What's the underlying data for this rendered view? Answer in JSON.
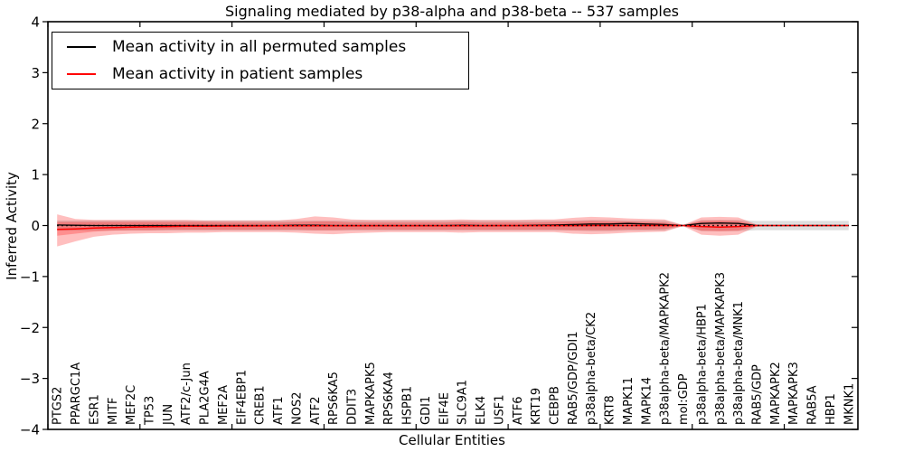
{
  "chart_data": {
    "type": "area",
    "title": "Signaling mediated by p38-alpha and p38-beta -- 537 samples",
    "xlabel": "Cellular Entities",
    "ylabel": "Inferred Activity",
    "ylim": [
      -4,
      4
    ],
    "yticks": [
      4,
      3,
      2,
      1,
      0,
      -1,
      -2,
      -3,
      -4
    ],
    "x_major_tick_step": 5,
    "x_range": [
      0,
      44
    ],
    "grid": false,
    "legend": {
      "position": "upper left",
      "entries": [
        {
          "label": "Mean activity in all permuted samples",
          "color": "#000000"
        },
        {
          "label": "Mean activity in patient samples",
          "color": "#ff0000"
        }
      ]
    },
    "zero_line": {
      "y": 0,
      "style": "dotted",
      "color": "#000000"
    },
    "colors": {
      "patient_line": "#ff0000",
      "permuted_line": "#000000",
      "patient_band_fill": "#ff0000",
      "patient_band_opacity": 0.25,
      "permuted_band_fill": "#888888",
      "permuted_band_opacity": 0.28,
      "spine": "#000000"
    },
    "categories": [
      "PTGS2",
      "PPARGC1A",
      "ESR1",
      "MITF",
      "MEF2C",
      "TP53",
      "JUN",
      "ATF2/c-Jun",
      "PLA2G4A",
      "MEF2A",
      "EIF4EBP1",
      "CREB1",
      "ATF1",
      "NOS2",
      "ATF2",
      "RPS6KA5",
      "DDIT3",
      "MAPKAPK5",
      "RPS6KA4",
      "HSPB1",
      "GDI1",
      "EIF4E",
      "SLC9A1",
      "ELK4",
      "USF1",
      "ATF6",
      "KRT19",
      "CEBPB",
      "RAB5/GDP/GDI1",
      "p38alpha-beta/CK2",
      "KRT8",
      "MAPK11",
      "MAPK14",
      "p38alpha-beta/MAPKAPK2",
      "mol:GDP",
      "p38alpha-beta/HBP1",
      "p38alpha-beta/MAPKAPK3",
      "p38alpha-beta/MNK1",
      "RAB5/GDP",
      "MAPKAPK2",
      "MAPKAPK3",
      "RAB5A",
      "HBP1",
      "MKNK1"
    ],
    "series": [
      {
        "name": "Mean activity in all permuted samples",
        "values": [
          0.01,
          0.005,
          0,
          0,
          0,
          0,
          0,
          0,
          0,
          0,
          0,
          0,
          0,
          0.005,
          0.005,
          0,
          0,
          0,
          0,
          0,
          0,
          0,
          0.005,
          0,
          0,
          0,
          0.005,
          0.01,
          0.02,
          0.03,
          0.03,
          0.04,
          0.03,
          0.02,
          0,
          0.04,
          0.05,
          0.04,
          0,
          0,
          0,
          0,
          0,
          0
        ]
      },
      {
        "name": "Mean activity in patient samples",
        "values": [
          -0.075,
          -0.065,
          -0.05,
          -0.04,
          -0.03,
          -0.025,
          -0.02,
          -0.015,
          -0.012,
          -0.01,
          -0.008,
          -0.007,
          -0.006,
          -0.006,
          -0.005,
          -0.005,
          -0.005,
          -0.004,
          -0.004,
          -0.004,
          -0.003,
          -0.003,
          -0.003,
          -0.003,
          -0.002,
          -0.002,
          -0.002,
          -0.002,
          -0.002,
          0,
          0,
          0,
          0,
          0,
          0,
          -0.02,
          -0.03,
          -0.02,
          0,
          0,
          0,
          0,
          0,
          0
        ]
      }
    ],
    "bands": {
      "patient_outer_hi": [
        0.22,
        0.13,
        0.11,
        0.11,
        0.11,
        0.11,
        0.11,
        0.11,
        0.1,
        0.1,
        0.1,
        0.1,
        0.1,
        0.13,
        0.18,
        0.16,
        0.12,
        0.11,
        0.11,
        0.11,
        0.11,
        0.11,
        0.12,
        0.11,
        0.11,
        0.11,
        0.12,
        0.12,
        0.15,
        0.17,
        0.16,
        0.14,
        0.13,
        0.12,
        0.01,
        0.16,
        0.17,
        0.16,
        0.02,
        0,
        0,
        0,
        0,
        0
      ],
      "patient_outer_lo": [
        -0.41,
        -0.31,
        -0.22,
        -0.18,
        -0.16,
        -0.15,
        -0.15,
        -0.14,
        -0.14,
        -0.13,
        -0.13,
        -0.13,
        -0.13,
        -0.14,
        -0.16,
        -0.17,
        -0.15,
        -0.14,
        -0.13,
        -0.13,
        -0.13,
        -0.13,
        -0.14,
        -0.13,
        -0.13,
        -0.13,
        -0.13,
        -0.13,
        -0.16,
        -0.17,
        -0.16,
        -0.14,
        -0.13,
        -0.12,
        -0.01,
        -0.18,
        -0.2,
        -0.18,
        -0.02,
        0,
        0,
        0,
        0,
        0
      ],
      "patient_inner_hi": [
        0.07,
        0.07,
        0.07,
        0.07,
        0.07,
        0.07,
        0.07,
        0.07,
        0.07,
        0.06,
        0.06,
        0.06,
        0.06,
        0.07,
        0.08,
        0.08,
        0.06,
        0.06,
        0.06,
        0.06,
        0.06,
        0.06,
        0.07,
        0.06,
        0.06,
        0.06,
        0.06,
        0.07,
        0.08,
        0.09,
        0.08,
        0.08,
        0.07,
        0.06,
        0.005,
        0.09,
        0.1,
        0.09,
        0.01,
        0,
        0,
        0,
        0,
        0
      ],
      "patient_inner_lo": [
        -0.2,
        -0.16,
        -0.12,
        -0.1,
        -0.09,
        -0.09,
        -0.08,
        -0.08,
        -0.08,
        -0.08,
        -0.08,
        -0.08,
        -0.08,
        -0.08,
        -0.09,
        -0.09,
        -0.08,
        -0.08,
        -0.08,
        -0.08,
        -0.08,
        -0.08,
        -0.08,
        -0.08,
        -0.08,
        -0.08,
        -0.08,
        -0.08,
        -0.09,
        -0.09,
        -0.09,
        -0.08,
        -0.08,
        -0.07,
        -0.005,
        -0.1,
        -0.11,
        -0.1,
        -0.01,
        0,
        0,
        0,
        0,
        0
      ],
      "permuted_hi": [
        0.1,
        0.1,
        0.1,
        0.1,
        0.1,
        0.1,
        0.1,
        0.1,
        0.1,
        0.1,
        0.1,
        0.1,
        0.1,
        0.1,
        0.1,
        0.1,
        0.1,
        0.1,
        0.1,
        0.1,
        0.1,
        0.1,
        0.1,
        0.1,
        0.1,
        0.1,
        0.1,
        0.1,
        0.1,
        0.11,
        0.11,
        0.1,
        0.1,
        0.1,
        0.01,
        0.11,
        0.11,
        0.11,
        0.09,
        0.09,
        0.09,
        0.09,
        0.09,
        0.09
      ],
      "permuted_lo": [
        -0.1,
        -0.1,
        -0.1,
        -0.1,
        -0.1,
        -0.1,
        -0.1,
        -0.1,
        -0.1,
        -0.1,
        -0.1,
        -0.1,
        -0.1,
        -0.1,
        -0.1,
        -0.1,
        -0.1,
        -0.1,
        -0.1,
        -0.1,
        -0.1,
        -0.1,
        -0.1,
        -0.1,
        -0.1,
        -0.1,
        -0.1,
        -0.1,
        -0.1,
        -0.11,
        -0.11,
        -0.1,
        -0.1,
        -0.1,
        -0.01,
        -0.11,
        -0.11,
        -0.11,
        -0.09,
        -0.09,
        -0.09,
        -0.09,
        -0.09,
        -0.09
      ]
    }
  }
}
